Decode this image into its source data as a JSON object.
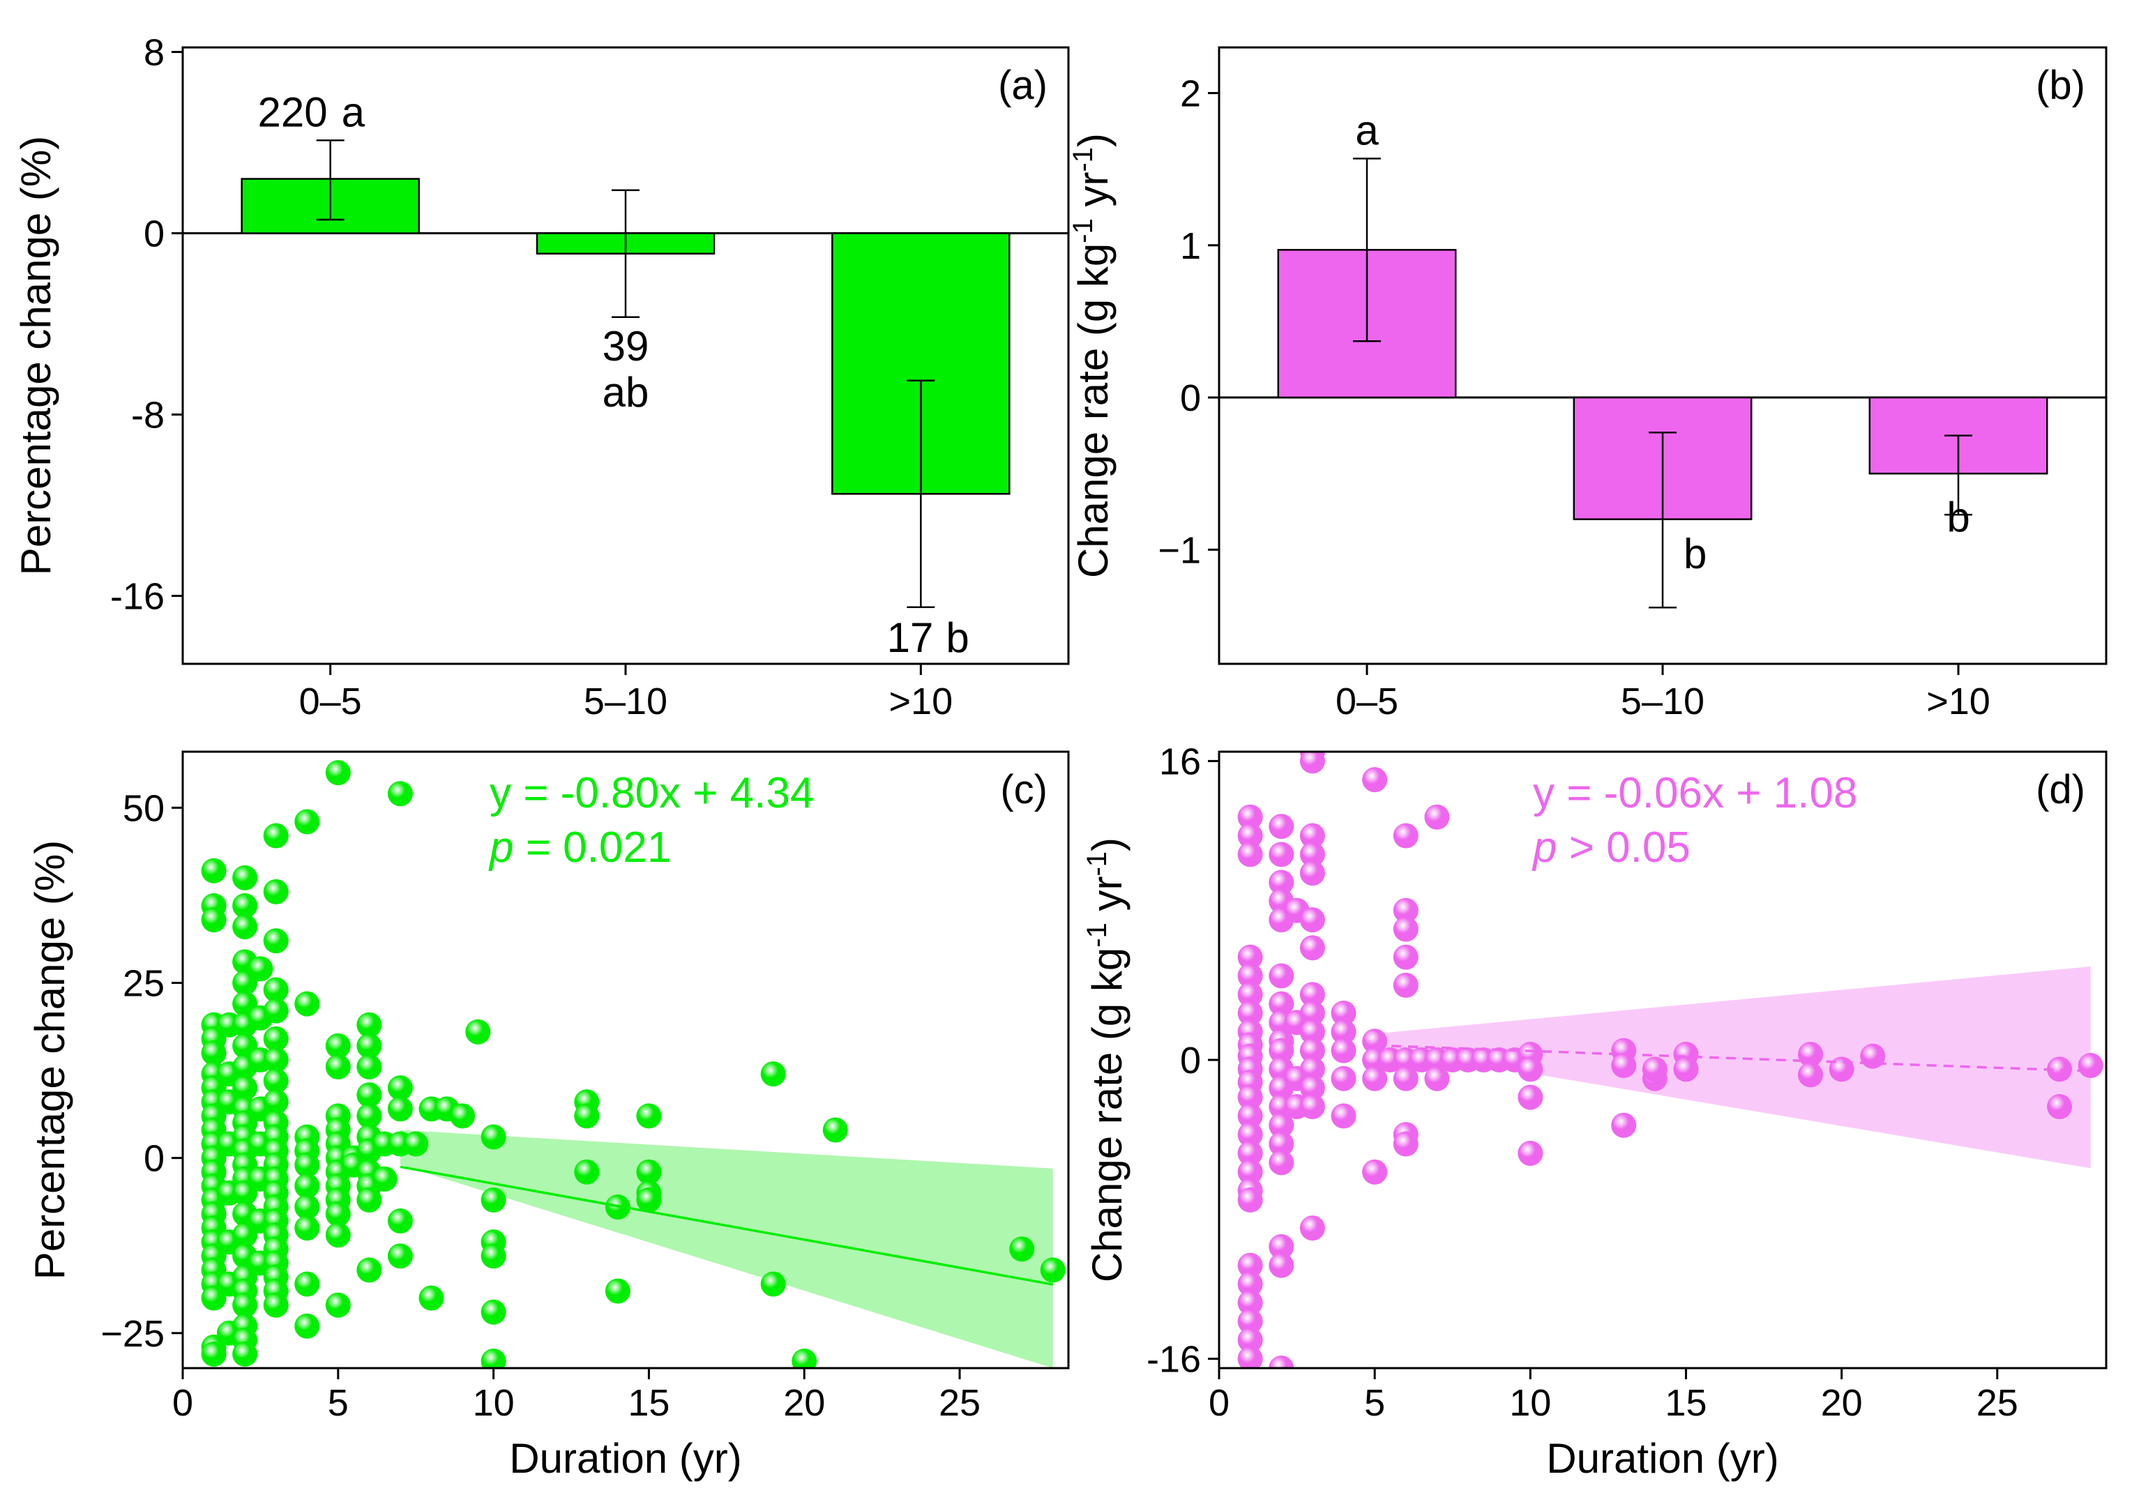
{
  "figure": {
    "colors": {
      "green": "#00ee00",
      "green_band": "#aaf7aa",
      "magenta": "#ee66ee",
      "magenta_band": "#f9c7f9",
      "axis": "#000000"
    }
  },
  "chart_data": [
    {
      "id": "a",
      "panel_label": "(a)",
      "type": "bar",
      "categories": [
        "0–5",
        "5–10",
        ">10"
      ],
      "values": [
        2.4,
        -0.9,
        -11.5
      ],
      "error_low": [
        0.6,
        -3.7,
        -16.5
      ],
      "error_high": [
        4.1,
        1.9,
        -6.5
      ],
      "bar_labels": [
        "220",
        "39",
        "17"
      ],
      "letters": [
        "a",
        "ab",
        "b"
      ],
      "ylabel": "Percentage change (%)",
      "ylim": [
        -19,
        8.2
      ],
      "yticks": [
        8,
        0,
        -8,
        -16
      ],
      "ytick_labels": [
        "8",
        "0",
        "-8",
        "-16"
      ],
      "color": "#00ee00"
    },
    {
      "id": "b",
      "panel_label": "(b)",
      "type": "bar",
      "categories": [
        "0–5",
        "5–10",
        ">10"
      ],
      "values": [
        0.97,
        -0.8,
        -0.5
      ],
      "error_low": [
        0.37,
        -1.38,
        -0.77
      ],
      "error_high": [
        1.57,
        -0.23,
        -0.25
      ],
      "letters": [
        "a",
        "b",
        "b"
      ],
      "ylabel": "Change rate (g kg⁻¹ yr⁻¹)",
      "ylim": [
        -1.75,
        2.3
      ],
      "yticks": [
        2,
        1,
        0,
        -1
      ],
      "ytick_labels": [
        "2",
        "1",
        "0",
        "−1"
      ],
      "color": "#ee66ee"
    },
    {
      "id": "c",
      "panel_label": "(c)",
      "type": "scatter",
      "xlabel": "Duration (yr)",
      "ylabel": "Percentage change (%)",
      "xlim": [
        0,
        28.5
      ],
      "ylim": [
        -30,
        58
      ],
      "xticks": [
        0,
        5,
        10,
        15,
        20,
        25
      ],
      "yticks": [
        50,
        25,
        0,
        -25
      ],
      "ytick_labels": [
        "50",
        "25",
        "0",
        "−25"
      ],
      "equation": "y = -0.80x + 4.34",
      "p_value": "p = 0.021",
      "fit": {
        "slope": -0.8,
        "intercept": 4.34,
        "x_range": [
          7,
          28
        ],
        "style": "solid",
        "band_upper": [
          [
            7,
            4.0
          ],
          [
            28,
            -1.5
          ]
        ],
        "band_lower": [
          [
            7,
            -1.0
          ],
          [
            28,
            -30
          ]
        ]
      },
      "color": "#00ee00",
      "points": [
        [
          1,
          41
        ],
        [
          1,
          36
        ],
        [
          1,
          34
        ],
        [
          1,
          19
        ],
        [
          1,
          17
        ],
        [
          1,
          15
        ],
        [
          1,
          12
        ],
        [
          1,
          10
        ],
        [
          1,
          8
        ],
        [
          1,
          6
        ],
        [
          1,
          4
        ],
        [
          1,
          2
        ],
        [
          1,
          0
        ],
        [
          1,
          -2
        ],
        [
          1,
          -4
        ],
        [
          1,
          -6
        ],
        [
          1,
          -8
        ],
        [
          1,
          -10
        ],
        [
          1,
          -12
        ],
        [
          1,
          -14
        ],
        [
          1,
          -16
        ],
        [
          1,
          -18
        ],
        [
          1,
          -20
        ],
        [
          1,
          -27
        ],
        [
          1,
          -28
        ],
        [
          1.5,
          19
        ],
        [
          1.5,
          12
        ],
        [
          1.5,
          8
        ],
        [
          1.5,
          2
        ],
        [
          1.5,
          -5
        ],
        [
          1.5,
          -12
        ],
        [
          1.5,
          -18
        ],
        [
          1.5,
          -25
        ],
        [
          2,
          40
        ],
        [
          2,
          36
        ],
        [
          2,
          33
        ],
        [
          2,
          28
        ],
        [
          2,
          25
        ],
        [
          2,
          22
        ],
        [
          2,
          19
        ],
        [
          2,
          16
        ],
        [
          2,
          13
        ],
        [
          2,
          10
        ],
        [
          2,
          7
        ],
        [
          2,
          5
        ],
        [
          2,
          3
        ],
        [
          2,
          1
        ],
        [
          2,
          -1
        ],
        [
          2,
          -3
        ],
        [
          2,
          -5
        ],
        [
          2,
          -8
        ],
        [
          2,
          -11
        ],
        [
          2,
          -14
        ],
        [
          2,
          -17
        ],
        [
          2,
          -19
        ],
        [
          2,
          -21
        ],
        [
          2,
          -24
        ],
        [
          2,
          -26
        ],
        [
          2,
          -28
        ],
        [
          2.5,
          27
        ],
        [
          2.5,
          20
        ],
        [
          2.5,
          14
        ],
        [
          2.5,
          7
        ],
        [
          2.5,
          2
        ],
        [
          2.5,
          -3
        ],
        [
          2.5,
          -9
        ],
        [
          2.5,
          -15
        ],
        [
          3,
          46
        ],
        [
          3,
          38
        ],
        [
          3,
          31
        ],
        [
          3,
          24
        ],
        [
          3,
          21
        ],
        [
          3,
          17
        ],
        [
          3,
          14
        ],
        [
          3,
          11
        ],
        [
          3,
          8
        ],
        [
          3,
          5
        ],
        [
          3,
          3
        ],
        [
          3,
          1
        ],
        [
          3,
          -1
        ],
        [
          3,
          -3
        ],
        [
          3,
          -5
        ],
        [
          3,
          -7
        ],
        [
          3,
          -9
        ],
        [
          3,
          -11
        ],
        [
          3,
          -13
        ],
        [
          3,
          -15
        ],
        [
          3,
          -17
        ],
        [
          3,
          -19
        ],
        [
          3,
          -21
        ],
        [
          4,
          48
        ],
        [
          4,
          22
        ],
        [
          4,
          3
        ],
        [
          4,
          1
        ],
        [
          4,
          -1
        ],
        [
          4,
          -4
        ],
        [
          4,
          -7
        ],
        [
          4,
          -10
        ],
        [
          4,
          -18
        ],
        [
          4,
          -24
        ],
        [
          5,
          55
        ],
        [
          5,
          16
        ],
        [
          5,
          13
        ],
        [
          5,
          6
        ],
        [
          5,
          4
        ],
        [
          5,
          2
        ],
        [
          5,
          0
        ],
        [
          5,
          -2
        ],
        [
          5,
          -4
        ],
        [
          5,
          -6
        ],
        [
          5,
          -8
        ],
        [
          5,
          -11
        ],
        [
          5,
          -21
        ],
        [
          5.5,
          0
        ],
        [
          5.5,
          -1
        ],
        [
          6,
          19
        ],
        [
          6,
          16
        ],
        [
          6,
          13
        ],
        [
          6,
          9
        ],
        [
          6,
          6
        ],
        [
          6,
          3
        ],
        [
          6,
          1
        ],
        [
          6,
          -2
        ],
        [
          6,
          -4
        ],
        [
          6,
          -6
        ],
        [
          6,
          -16
        ],
        [
          6.5,
          2
        ],
        [
          6.5,
          -3
        ],
        [
          7,
          52
        ],
        [
          7,
          10
        ],
        [
          7,
          7
        ],
        [
          7,
          2
        ],
        [
          7,
          -9
        ],
        [
          7,
          -14
        ],
        [
          7.5,
          2
        ],
        [
          8,
          7
        ],
        [
          8,
          -20
        ],
        [
          8.5,
          7
        ],
        [
          9,
          6
        ],
        [
          9.5,
          18
        ],
        [
          10,
          3
        ],
        [
          10,
          -6
        ],
        [
          10,
          -12
        ],
        [
          10,
          -14
        ],
        [
          10,
          -22
        ],
        [
          10,
          -29
        ],
        [
          13,
          8
        ],
        [
          13,
          6
        ],
        [
          13,
          -2
        ],
        [
          14,
          -7
        ],
        [
          14,
          -19
        ],
        [
          15,
          6
        ],
        [
          15,
          -2
        ],
        [
          15,
          -5
        ],
        [
          15,
          -6
        ],
        [
          19,
          12
        ],
        [
          19,
          -18
        ],
        [
          20,
          -29
        ],
        [
          21,
          4
        ],
        [
          27,
          -13
        ],
        [
          28,
          -16
        ]
      ]
    },
    {
      "id": "d",
      "panel_label": "(d)",
      "type": "scatter",
      "xlabel": "Duration (yr)",
      "ylabel": "Change rate (g kg⁻¹ yr⁻¹)",
      "xlim": [
        0,
        28.5
      ],
      "ylim": [
        -16.5,
        16.5
      ],
      "xticks": [
        0,
        5,
        10,
        15,
        20,
        25
      ],
      "yticks": [
        16,
        0,
        -16
      ],
      "ytick_labels": [
        "16",
        "0",
        "-16"
      ],
      "equation": "y = -0.06x + 1.08",
      "p_value": "p > 0.05",
      "fit": {
        "slope": -0.06,
        "intercept": 1.08,
        "x_range": [
          5,
          28
        ],
        "style": "dashed",
        "band_upper": [
          [
            5,
            1.4
          ],
          [
            28,
            5.0
          ]
        ],
        "band_lower": [
          [
            5,
            0.7
          ],
          [
            28,
            -5.8
          ]
        ]
      },
      "color": "#ee66ee",
      "points": [
        [
          1,
          13
        ],
        [
          1,
          12
        ],
        [
          1,
          11
        ],
        [
          1,
          5.5
        ],
        [
          1,
          4.5
        ],
        [
          1,
          3.5
        ],
        [
          1,
          2.5
        ],
        [
          1,
          1.5
        ],
        [
          1,
          0.8
        ],
        [
          1,
          0.2
        ],
        [
          1,
          -0.5
        ],
        [
          1,
          -1.2
        ],
        [
          1,
          -2
        ],
        [
          1,
          -3
        ],
        [
          1,
          -4
        ],
        [
          1,
          -5
        ],
        [
          1,
          -6
        ],
        [
          1,
          -7
        ],
        [
          1,
          -7.5
        ],
        [
          1,
          -11
        ],
        [
          1,
          -12
        ],
        [
          1,
          -13
        ],
        [
          1,
          -14
        ],
        [
          1,
          -15
        ],
        [
          1,
          -16
        ],
        [
          2,
          12.5
        ],
        [
          2,
          11
        ],
        [
          2,
          9.5
        ],
        [
          2,
          8.5
        ],
        [
          2,
          7.5
        ],
        [
          2,
          4.5
        ],
        [
          2,
          3
        ],
        [
          2,
          2
        ],
        [
          2,
          1
        ],
        [
          2,
          0.5
        ],
        [
          2,
          -0.5
        ],
        [
          2,
          -1.5
        ],
        [
          2,
          -2.5
        ],
        [
          2,
          -3.5
        ],
        [
          2,
          -4.5
        ],
        [
          2,
          -5.5
        ],
        [
          2,
          -10
        ],
        [
          2,
          -11
        ],
        [
          2,
          -16.5
        ],
        [
          2.5,
          8
        ],
        [
          2.5,
          2
        ],
        [
          2.5,
          -1
        ],
        [
          2.5,
          -2.5
        ],
        [
          3,
          17
        ],
        [
          3,
          16
        ],
        [
          3,
          12
        ],
        [
          3,
          11
        ],
        [
          3,
          10
        ],
        [
          3,
          7.5
        ],
        [
          3,
          6
        ],
        [
          3,
          3.5
        ],
        [
          3,
          2.5
        ],
        [
          3,
          1.5
        ],
        [
          3,
          0.5
        ],
        [
          3,
          -0.5
        ],
        [
          3,
          -1.5
        ],
        [
          3,
          -2.5
        ],
        [
          3,
          -9
        ],
        [
          4,
          2.5
        ],
        [
          4,
          1.5
        ],
        [
          4,
          0.5
        ],
        [
          4,
          -1
        ],
        [
          4,
          -3
        ],
        [
          5,
          15
        ],
        [
          5,
          1
        ],
        [
          5,
          0
        ],
        [
          5,
          -1
        ],
        [
          5,
          -6
        ],
        [
          5.5,
          0
        ],
        [
          6,
          12
        ],
        [
          6,
          8
        ],
        [
          6,
          7
        ],
        [
          6,
          5.5
        ],
        [
          6,
          4
        ],
        [
          6,
          0
        ],
        [
          6,
          -1
        ],
        [
          6,
          -4
        ],
        [
          6,
          -4.5
        ],
        [
          6.5,
          0
        ],
        [
          7,
          13
        ],
        [
          7,
          0
        ],
        [
          7,
          -1
        ],
        [
          7.5,
          0
        ],
        [
          8,
          0
        ],
        [
          8.5,
          0
        ],
        [
          9,
          0
        ],
        [
          9.5,
          0
        ],
        [
          10,
          0.3
        ],
        [
          10,
          -0.5
        ],
        [
          10,
          -2
        ],
        [
          10,
          -5
        ],
        [
          13,
          0.5
        ],
        [
          13,
          -0.3
        ],
        [
          13,
          -3.5
        ],
        [
          14,
          -1
        ],
        [
          14,
          -0.5
        ],
        [
          15,
          0.3
        ],
        [
          15,
          -0.5
        ],
        [
          19,
          0.3
        ],
        [
          19,
          -0.8
        ],
        [
          20,
          -0.5
        ],
        [
          21,
          0.2
        ],
        [
          27,
          -0.5
        ],
        [
          27,
          -2.5
        ],
        [
          28,
          -0.3
        ]
      ]
    }
  ]
}
